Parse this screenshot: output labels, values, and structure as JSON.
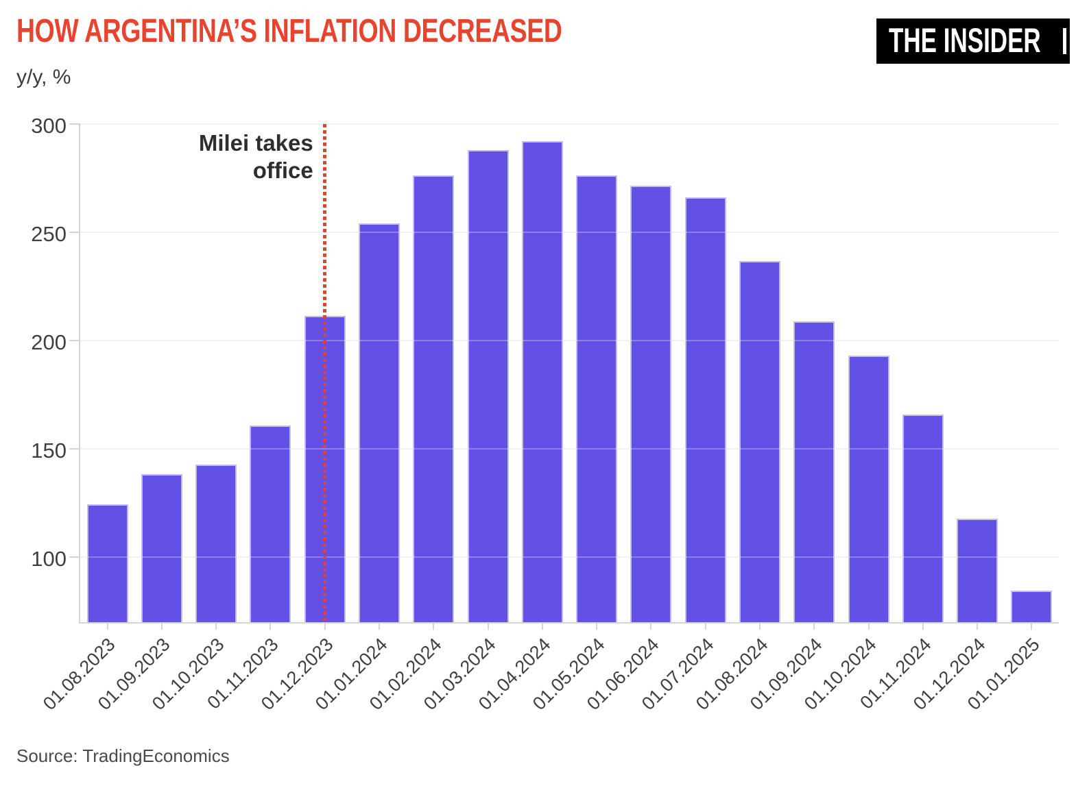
{
  "header": {
    "title": "HOW ARGENTINA’S INFLATION DECREASED",
    "subtitle": "y/y, %",
    "logo_text": "THE INSIDER"
  },
  "annotation": {
    "line1": "Milei takes",
    "line2": "office"
  },
  "source": "Source: TradingEconomics",
  "colors": {
    "title": "#e8432e",
    "subtitle": "#3a3a3a",
    "bar": "#6351e5",
    "bar_edge": "#c3bcf4",
    "marker_line": "#e8402c",
    "grid": "#ececec",
    "axis": "#d4d4d4",
    "axis_text": "#3f3f3f",
    "annotation_text": "#2e2e2e",
    "source_text": "#4a4a4a",
    "logo_bg": "#000000",
    "logo_fg": "#ffffff",
    "background": "#ffffff"
  },
  "chart_data": {
    "type": "bar",
    "title": "HOW ARGENTINA’S INFLATION DECREASED",
    "ylabel": "y/y, %",
    "xlabel": "",
    "categories": [
      "01.08.2023",
      "01.09.2023",
      "01.10.2023",
      "01.11.2023",
      "01.12.2023",
      "01.01.2024",
      "01.02.2024",
      "01.03.2024",
      "01.04.2024",
      "01.05.2024",
      "01.06.2024",
      "01.07.2024",
      "01.08.2024",
      "01.09.2024",
      "01.10.2024",
      "01.11.2024",
      "01.12.2024",
      "01.01.2025"
    ],
    "values": [
      124.4,
      138.3,
      142.7,
      160.9,
      211.4,
      254.2,
      276.2,
      287.9,
      292.2,
      276.4,
      271.5,
      266.0,
      236.7,
      209.0,
      193.0,
      166.0,
      117.8,
      84.5
    ],
    "yticks": [
      100,
      150,
      200,
      250,
      300
    ],
    "ylim": [
      70,
      300
    ],
    "grid": true,
    "legend": false,
    "annotation": {
      "text": "Milei takes office",
      "at_category": "01.12.2023"
    },
    "source": "Source: TradingEconomics"
  }
}
